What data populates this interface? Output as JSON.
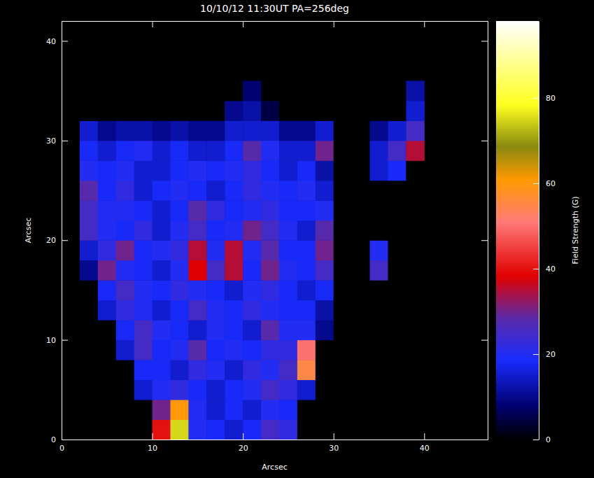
{
  "chart_data": {
    "type": "heatmap",
    "title": "10/10/12 11:30UT PA=256deg",
    "x_label": "Arcsec",
    "y_label": "Arcsec",
    "xlim": [
      0,
      47
    ],
    "ylim": [
      0,
      42
    ],
    "xticks": [
      0,
      10,
      20,
      30,
      40
    ],
    "yticks": [
      0,
      10,
      20,
      30,
      40
    ],
    "x": [
      3,
      5,
      7,
      9,
      11,
      13,
      15,
      17,
      19,
      21,
      23,
      25,
      27,
      29,
      31,
      33,
      35,
      37,
      39
    ],
    "y": [
      1,
      3,
      5,
      7,
      9,
      11,
      13,
      15,
      17,
      19,
      21,
      23,
      25,
      27,
      29,
      31,
      33,
      35
    ],
    "z": [
      [
        0,
        0,
        0,
        0,
        40,
        75,
        20,
        18,
        15,
        18,
        25,
        22,
        0,
        0,
        0,
        0,
        0,
        0,
        0
      ],
      [
        0,
        0,
        0,
        0,
        30,
        60,
        20,
        15,
        18,
        15,
        20,
        18,
        0,
        0,
        0,
        0,
        0,
        0,
        0
      ],
      [
        0,
        0,
        0,
        15,
        20,
        22,
        18,
        15,
        18,
        20,
        25,
        22,
        15,
        0,
        0,
        0,
        0,
        0,
        0
      ],
      [
        0,
        0,
        0,
        18,
        18,
        15,
        22,
        20,
        15,
        22,
        20,
        25,
        55,
        0,
        0,
        0,
        0,
        0,
        0
      ],
      [
        0,
        0,
        15,
        25,
        18,
        20,
        28,
        18,
        20,
        18,
        22,
        22,
        50,
        0,
        0,
        0,
        0,
        0,
        0
      ],
      [
        0,
        0,
        18,
        25,
        20,
        18,
        15,
        20,
        18,
        15,
        28,
        20,
        20,
        10,
        0,
        0,
        0,
        0,
        0
      ],
      [
        0,
        15,
        22,
        20,
        15,
        18,
        25,
        20,
        18,
        22,
        20,
        18,
        18,
        12,
        0,
        0,
        0,
        0,
        0
      ],
      [
        0,
        18,
        25,
        20,
        18,
        22,
        20,
        18,
        15,
        20,
        22,
        18,
        15,
        18,
        0,
        0,
        0,
        0,
        0
      ],
      [
        10,
        30,
        20,
        18,
        15,
        20,
        38,
        25,
        35,
        18,
        30,
        20,
        18,
        25,
        0,
        0,
        25,
        0,
        0
      ],
      [
        15,
        22,
        30,
        18,
        20,
        22,
        35,
        20,
        35,
        20,
        28,
        18,
        18,
        30,
        0,
        0,
        20,
        0,
        0
      ],
      [
        25,
        20,
        18,
        22,
        15,
        20,
        25,
        18,
        20,
        30,
        25,
        20,
        15,
        28,
        0,
        0,
        0,
        0,
        0
      ],
      [
        25,
        20,
        20,
        18,
        15,
        18,
        28,
        22,
        18,
        20,
        22,
        18,
        18,
        20,
        0,
        0,
        0,
        0,
        0
      ],
      [
        28,
        18,
        22,
        15,
        18,
        20,
        18,
        15,
        18,
        22,
        20,
        18,
        20,
        15,
        0,
        0,
        0,
        0,
        0
      ],
      [
        20,
        18,
        20,
        15,
        15,
        18,
        20,
        18,
        20,
        22,
        18,
        15,
        18,
        12,
        0,
        0,
        15,
        18,
        0
      ],
      [
        18,
        15,
        18,
        20,
        15,
        18,
        15,
        15,
        18,
        28,
        20,
        15,
        15,
        30,
        0,
        0,
        15,
        25,
        35
      ],
      [
        15,
        10,
        12,
        12,
        10,
        12,
        10,
        10,
        15,
        15,
        15,
        10,
        10,
        15,
        0,
        0,
        10,
        15,
        25
      ],
      [
        0,
        0,
        0,
        0,
        0,
        0,
        0,
        0,
        10,
        12,
        5,
        0,
        0,
        0,
        0,
        0,
        0,
        0,
        15
      ],
      [
        0,
        0,
        0,
        0,
        0,
        0,
        0,
        0,
        0,
        8,
        0,
        0,
        0,
        0,
        0,
        0,
        0,
        0,
        12
      ]
    ],
    "colorbar": {
      "range": [
        0,
        98
      ],
      "ticks": [
        0,
        20,
        40,
        60,
        80
      ],
      "label": "Field Strength (G)"
    }
  }
}
